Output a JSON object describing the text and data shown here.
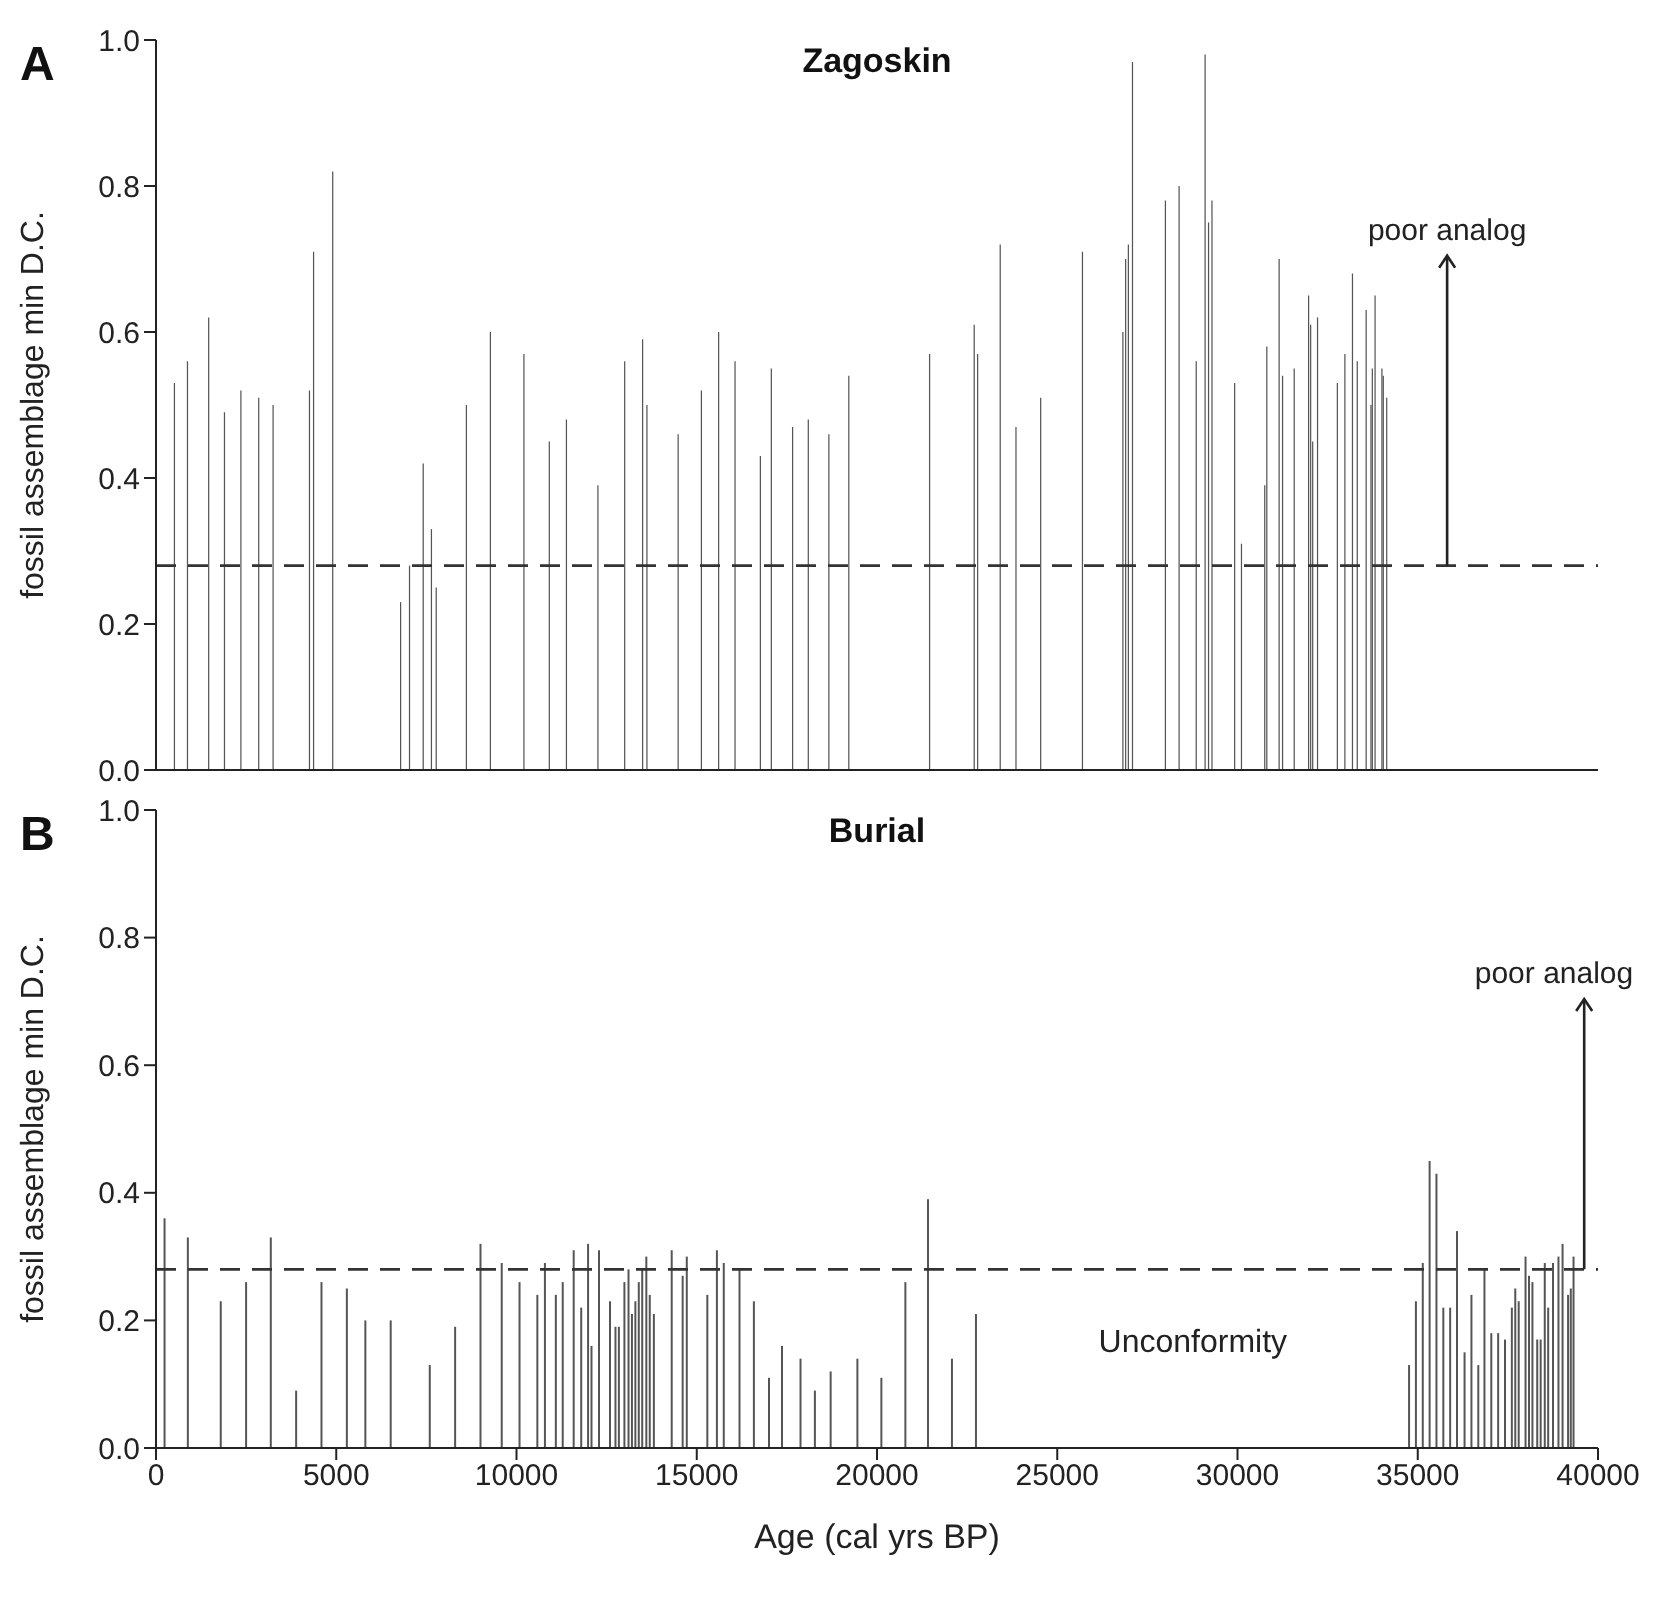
{
  "chart_data": [
    {
      "type": "bar",
      "title": "Zagoskin",
      "ylabel": "fossil assemblage min D.C.",
      "annotations": [
        "A",
        {
          "text": "poor analog",
          "x": 35815,
          "y": 0.28
        }
      ],
      "x": [
        513,
        875,
        1463,
        1901,
        2357,
        2851,
        3250,
        4259,
        4373,
        4904,
        6787,
        7034,
        7414,
        7642,
        7775,
        8612,
        9278,
        10208,
        10912,
        11387,
        12261,
        13003,
        13500,
        13620,
        14486,
        15131,
        15609,
        16064,
        16767,
        17071,
        17661,
        18096,
        18667,
        19220,
        21461,
        22698,
        22793,
        23420,
        23857,
        24542,
        25701,
        26823,
        26899,
        26975,
        27089,
        28002,
        28382,
        28857,
        29103,
        29199,
        29294,
        29923,
        30112,
        30758,
        30815,
        31157,
        31252,
        31575,
        31974,
        32031,
        32088,
        32222,
        32772,
        32981,
        33191,
        33324,
        33571,
        33704,
        33742,
        33818,
        34008,
        34046,
        34141
      ],
      "values": [
        0.53,
        0.56,
        0.62,
        0.49,
        0.52,
        0.51,
        0.5,
        0.52,
        0.71,
        0.82,
        0.23,
        0.28,
        0.42,
        0.33,
        0.25,
        0.5,
        0.6,
        0.57,
        0.45,
        0.48,
        0.39,
        0.56,
        0.59,
        0.5,
        0.46,
        0.52,
        0.6,
        0.56,
        0.43,
        0.55,
        0.47,
        0.48,
        0.46,
        0.54,
        0.57,
        0.61,
        0.57,
        0.72,
        0.47,
        0.51,
        0.71,
        0.6,
        0.7,
        0.72,
        0.97,
        0.78,
        0.8,
        0.56,
        0.98,
        0.75,
        0.78,
        0.53,
        0.31,
        0.39,
        0.58,
        0.7,
        0.54,
        0.55,
        0.65,
        0.61,
        0.45,
        0.62,
        0.53,
        0.57,
        0.68,
        0.56,
        0.63,
        0.5,
        0.55,
        0.65,
        0.55,
        0.54,
        0.51
      ],
      "color": "#555555",
      "xlim": [
        0,
        40000
      ],
      "ylim": [
        0,
        1
      ],
      "yticks": [
        {
          "value": 0,
          "label": "0.0"
        },
        {
          "value": 0.2,
          "label": "0.2"
        },
        {
          "value": 0.4,
          "label": "0.4"
        },
        {
          "value": 0.6,
          "label": "0.6"
        },
        {
          "value": 0.8,
          "label": "0.8"
        },
        {
          "value": 1,
          "label": "1.0"
        }
      ],
      "tick_labels": "y",
      "grid": false,
      "legend": false,
      "ref_lines": [
        {
          "axis": "y",
          "value": 0.28,
          "line_style": "dashed",
          "color": "#333333"
        }
      ]
    },
    {
      "type": "bar",
      "title": "Burial",
      "xlabel": "Age (cal yrs BP)",
      "ylabel": "fossil assemblage min D.C.",
      "annotations": [
        "B",
        {
          "text": "poor analog",
          "x": 39617,
          "y": 0.28
        },
        "Unconformity"
      ],
      "x": [
        247,
        893,
        1806,
        2509,
        3194,
        3897,
        4600,
        5304,
        5817,
        6520,
        7604,
        8307,
        9011,
        9600,
        10094,
        10588,
        10798,
        11101,
        11292,
        11596,
        11805,
        11995,
        12090,
        12299,
        12603,
        12755,
        12850,
        13003,
        13117,
        13212,
        13307,
        13402,
        13497,
        13611,
        13706,
        13820,
        14315,
        14619,
        14733,
        15303,
        15569,
        15759,
        16196,
        16595,
        17014,
        17375,
        17888,
        18287,
        18724,
        19466,
        20131,
        20797,
        21424,
        22089,
        22755,
        34769,
        34959,
        35149,
        35339,
        35529,
        35719,
        35909,
        36099,
        36308,
        36499,
        36689,
        36860,
        37050,
        37240,
        37430,
        37620,
        37715,
        37810,
        38000,
        38096,
        38191,
        38324,
        38419,
        38533,
        38628,
        38761,
        38913,
        39027,
        39180,
        39255,
        39331
      ],
      "values": [
        0.36,
        0.33,
        0.23,
        0.26,
        0.33,
        0.09,
        0.26,
        0.25,
        0.2,
        0.2,
        0.13,
        0.19,
        0.32,
        0.29,
        0.26,
        0.24,
        0.29,
        0.24,
        0.26,
        0.31,
        0.22,
        0.32,
        0.16,
        0.31,
        0.23,
        0.19,
        0.19,
        0.26,
        0.28,
        0.21,
        0.23,
        0.26,
        0.28,
        0.3,
        0.24,
        0.21,
        0.31,
        0.27,
        0.3,
        0.24,
        0.31,
        0.29,
        0.28,
        0.23,
        0.11,
        0.16,
        0.14,
        0.09,
        0.12,
        0.14,
        0.11,
        0.26,
        0.39,
        0.14,
        0.21,
        0.13,
        0.23,
        0.29,
        0.45,
        0.43,
        0.22,
        0.22,
        0.34,
        0.15,
        0.24,
        0.13,
        0.28,
        0.18,
        0.18,
        0.17,
        0.22,
        0.25,
        0.23,
        0.3,
        0.27,
        0.26,
        0.17,
        0.17,
        0.29,
        0.22,
        0.29,
        0.3,
        0.32,
        0.24,
        0.25,
        0.3
      ],
      "color": "#555555",
      "xlim": [
        0,
        40000
      ],
      "xticks": [
        0,
        5000,
        10000,
        15000,
        20000,
        25000,
        30000,
        35000,
        40000
      ],
      "ylim": [
        0,
        1
      ],
      "yticks": [
        {
          "value": 0,
          "label": "0.0"
        },
        {
          "value": 0.2,
          "label": "0.2"
        },
        {
          "value": 0.4,
          "label": "0.4"
        },
        {
          "value": 0.6,
          "label": "0.6"
        },
        {
          "value": 0.8,
          "label": "0.8"
        },
        {
          "value": 1,
          "label": "1.0"
        }
      ],
      "grid": false,
      "legend": false,
      "ref_lines": [
        {
          "axis": "y",
          "value": 0.28,
          "line_style": "dashed",
          "color": "#333333"
        }
      ]
    }
  ]
}
